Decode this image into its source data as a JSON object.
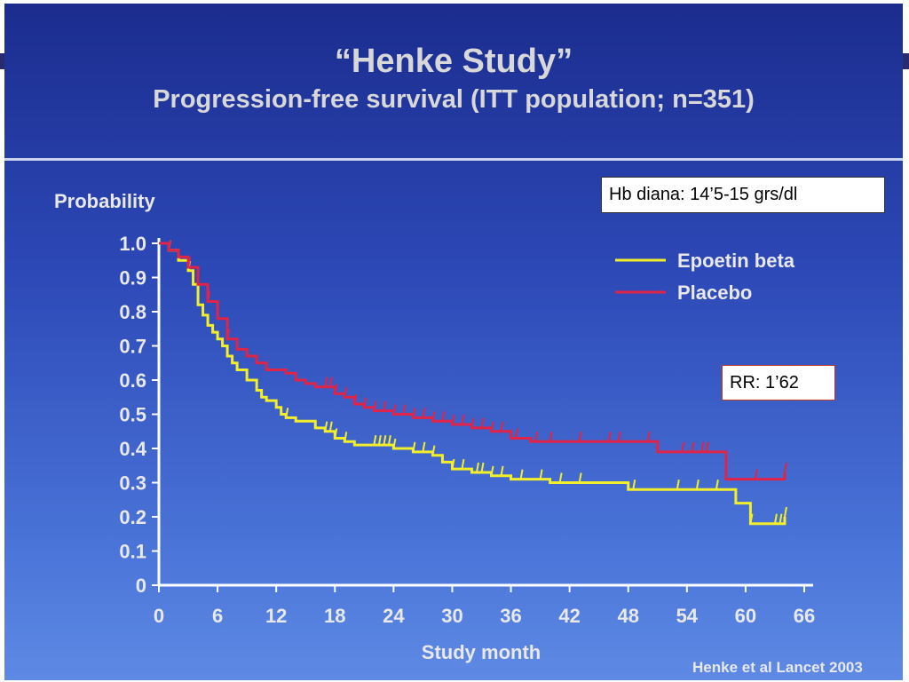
{
  "slide": {
    "title": "“Henke Study”",
    "subtitle": "Progression-free survival (ITT population; n=351)",
    "hb_note": "Hb diana: 14’5-15 grs/dl",
    "rr_note": "RR: 1’62",
    "citation": "Henke et al Lancet 2003"
  },
  "colors": {
    "epoetin": "#f2ee2a",
    "placebo": "#e02448",
    "axis": "#ffffff",
    "text": "#e8e8e8"
  },
  "chart_data": {
    "type": "line",
    "subtype": "step",
    "ylabel": "Probability",
    "xlabel": "Study month",
    "xlim": [
      0,
      66
    ],
    "ylim": [
      0,
      1.0
    ],
    "xticks": [
      0,
      6,
      12,
      18,
      24,
      30,
      36,
      42,
      48,
      54,
      60,
      66
    ],
    "yticks": [
      0,
      0.1,
      0.2,
      0.3,
      0.4,
      0.5,
      0.6,
      0.7,
      0.8,
      0.9,
      1.0
    ],
    "ytick_labels": [
      "0",
      "0.1",
      "0.2",
      "0.3",
      "0.4",
      "0.5",
      "0.6",
      "0.7",
      "0.8",
      "0.9",
      "1.0"
    ],
    "legend_position": "top-right",
    "series": [
      {
        "name": "Epoetin beta",
        "color": "#f2ee2a",
        "x": [
          0,
          1,
          2,
          3,
          3.5,
          4,
          4.5,
          5,
          5.5,
          6,
          6.5,
          7,
          7.5,
          8,
          9,
          10,
          10.5,
          11,
          12,
          12.5,
          13,
          14,
          16,
          17,
          18,
          19,
          20,
          22,
          24,
          26,
          28,
          29,
          30,
          32,
          34,
          36,
          40,
          44,
          48,
          52,
          56,
          59,
          60,
          60.5,
          62,
          64
        ],
        "y": [
          1.0,
          0.98,
          0.95,
          0.92,
          0.88,
          0.82,
          0.79,
          0.76,
          0.74,
          0.72,
          0.7,
          0.67,
          0.65,
          0.63,
          0.6,
          0.57,
          0.55,
          0.54,
          0.52,
          0.5,
          0.49,
          0.48,
          0.46,
          0.45,
          0.43,
          0.42,
          0.41,
          0.41,
          0.4,
          0.39,
          0.38,
          0.36,
          0.34,
          0.33,
          0.32,
          0.31,
          0.3,
          0.3,
          0.28,
          0.28,
          0.28,
          0.24,
          0.24,
          0.18,
          0.18,
          0.2
        ],
        "censor_x": [
          1,
          3,
          13,
          17,
          17.5,
          18,
          19,
          22,
          22.5,
          23,
          23.5,
          24,
          26,
          27,
          28,
          30,
          31,
          32.5,
          33,
          34,
          35,
          37,
          39,
          41,
          43,
          48.5,
          53,
          55,
          57,
          60.5,
          63,
          63.5,
          64
        ]
      },
      {
        "name": "Placebo",
        "color": "#e02448",
        "x": [
          0,
          1,
          2,
          3,
          4,
          5,
          6,
          7,
          8,
          9,
          10,
          11,
          12,
          13,
          14,
          15,
          16,
          17,
          18,
          19,
          20,
          21,
          22,
          24,
          26,
          28,
          30,
          32,
          34,
          36,
          38,
          42,
          48,
          51,
          54,
          58,
          60,
          62,
          64
        ],
        "y": [
          1.0,
          0.98,
          0.96,
          0.93,
          0.88,
          0.83,
          0.78,
          0.72,
          0.69,
          0.67,
          0.65,
          0.63,
          0.63,
          0.62,
          0.6,
          0.59,
          0.58,
          0.58,
          0.56,
          0.55,
          0.53,
          0.52,
          0.51,
          0.5,
          0.49,
          0.48,
          0.47,
          0.46,
          0.45,
          0.43,
          0.42,
          0.42,
          0.42,
          0.39,
          0.39,
          0.31,
          0.31,
          0.31,
          0.33
        ],
        "censor_x": [
          1,
          3,
          5,
          7,
          17,
          17.5,
          18,
          19,
          20,
          21,
          22,
          23,
          24,
          25,
          26,
          27,
          28,
          29,
          30,
          31,
          32,
          33,
          34,
          35,
          36.5,
          38.5,
          40,
          43,
          46,
          47,
          50,
          53.5,
          54.5,
          55.5,
          56,
          61,
          64
        ]
      }
    ]
  }
}
